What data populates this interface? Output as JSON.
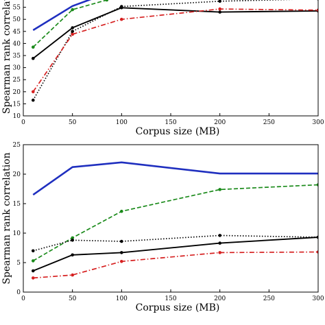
{
  "chart_data": [
    {
      "type": "line",
      "xlabel": "Corpus size (MB)",
      "ylabel": "Spearman rank correlation",
      "xlim": [
        0,
        300
      ],
      "ylim": [
        10,
        60
      ],
      "xticks": [
        "0",
        "50",
        "100",
        "150",
        "200",
        "250",
        "300"
      ],
      "yticks": [
        "10",
        "15",
        "20",
        "25",
        "30",
        "35",
        "40",
        "45",
        "50",
        "55"
      ],
      "grid": false,
      "series": [
        {
          "color": "#1f2fbf",
          "style": "solid-thick",
          "markers": false,
          "points": [
            [
              10,
              45.5
            ],
            [
              50,
              55.5
            ],
            [
              70,
              58.5
            ]
          ]
        },
        {
          "color": "#1a8a1a",
          "style": "dashed",
          "markers": true,
          "points": [
            [
              10,
              38.5
            ],
            [
              50,
              54.0
            ],
            [
              85,
              58.0
            ]
          ]
        },
        {
          "color": "#000000",
          "style": "dotted",
          "markers": true,
          "points": [
            [
              10,
              16.5
            ],
            [
              50,
              45.0
            ],
            [
              100,
              55.3
            ],
            [
              200,
              57.5
            ],
            [
              300,
              58.5
            ]
          ]
        },
        {
          "color": "#000000",
          "style": "solid",
          "markers": true,
          "points": [
            [
              10,
              33.8
            ],
            [
              50,
              46.5
            ],
            [
              100,
              54.8
            ],
            [
              200,
              53.0
            ],
            [
              300,
              53.5
            ]
          ]
        },
        {
          "color": "#d62020",
          "style": "dashdot",
          "markers": true,
          "points": [
            [
              10,
              20.0
            ],
            [
              50,
              43.8
            ],
            [
              100,
              50.0
            ],
            [
              200,
              54.3
            ],
            [
              300,
              53.8
            ]
          ]
        }
      ]
    },
    {
      "type": "line",
      "xlabel": "Corpus size (MB)",
      "ylabel": "Spearman rank correlation",
      "xlim": [
        0,
        300
      ],
      "ylim": [
        0,
        25
      ],
      "xticks": [
        "0",
        "50",
        "100",
        "150",
        "200",
        "250",
        "300"
      ],
      "yticks": [
        "0",
        "5",
        "10",
        "15",
        "20",
        "25"
      ],
      "grid": false,
      "series": [
        {
          "color": "#1f2fbf",
          "style": "solid-thick",
          "markers": false,
          "points": [
            [
              10,
              16.5
            ],
            [
              50,
              21.2
            ],
            [
              100,
              22.0
            ],
            [
              200,
              20.1
            ],
            [
              300,
              20.1
            ]
          ]
        },
        {
          "color": "#1a8a1a",
          "style": "dashed",
          "markers": true,
          "points": [
            [
              10,
              5.3
            ],
            [
              50,
              9.2
            ],
            [
              100,
              13.7
            ],
            [
              200,
              17.4
            ],
            [
              300,
              18.2
            ]
          ]
        },
        {
          "color": "#000000",
          "style": "dotted",
          "markers": true,
          "points": [
            [
              10,
              7.0
            ],
            [
              50,
              8.8
            ],
            [
              100,
              8.6
            ],
            [
              200,
              9.6
            ],
            [
              300,
              9.3
            ]
          ]
        },
        {
          "color": "#000000",
          "style": "solid",
          "markers": true,
          "points": [
            [
              10,
              3.6
            ],
            [
              50,
              6.3
            ],
            [
              100,
              6.7
            ],
            [
              200,
              8.3
            ],
            [
              300,
              9.3
            ]
          ]
        },
        {
          "color": "#d62020",
          "style": "dashdot",
          "markers": true,
          "points": [
            [
              10,
              2.4
            ],
            [
              50,
              2.9
            ],
            [
              100,
              5.2
            ],
            [
              200,
              6.7
            ],
            [
              300,
              6.8
            ]
          ]
        }
      ]
    }
  ]
}
